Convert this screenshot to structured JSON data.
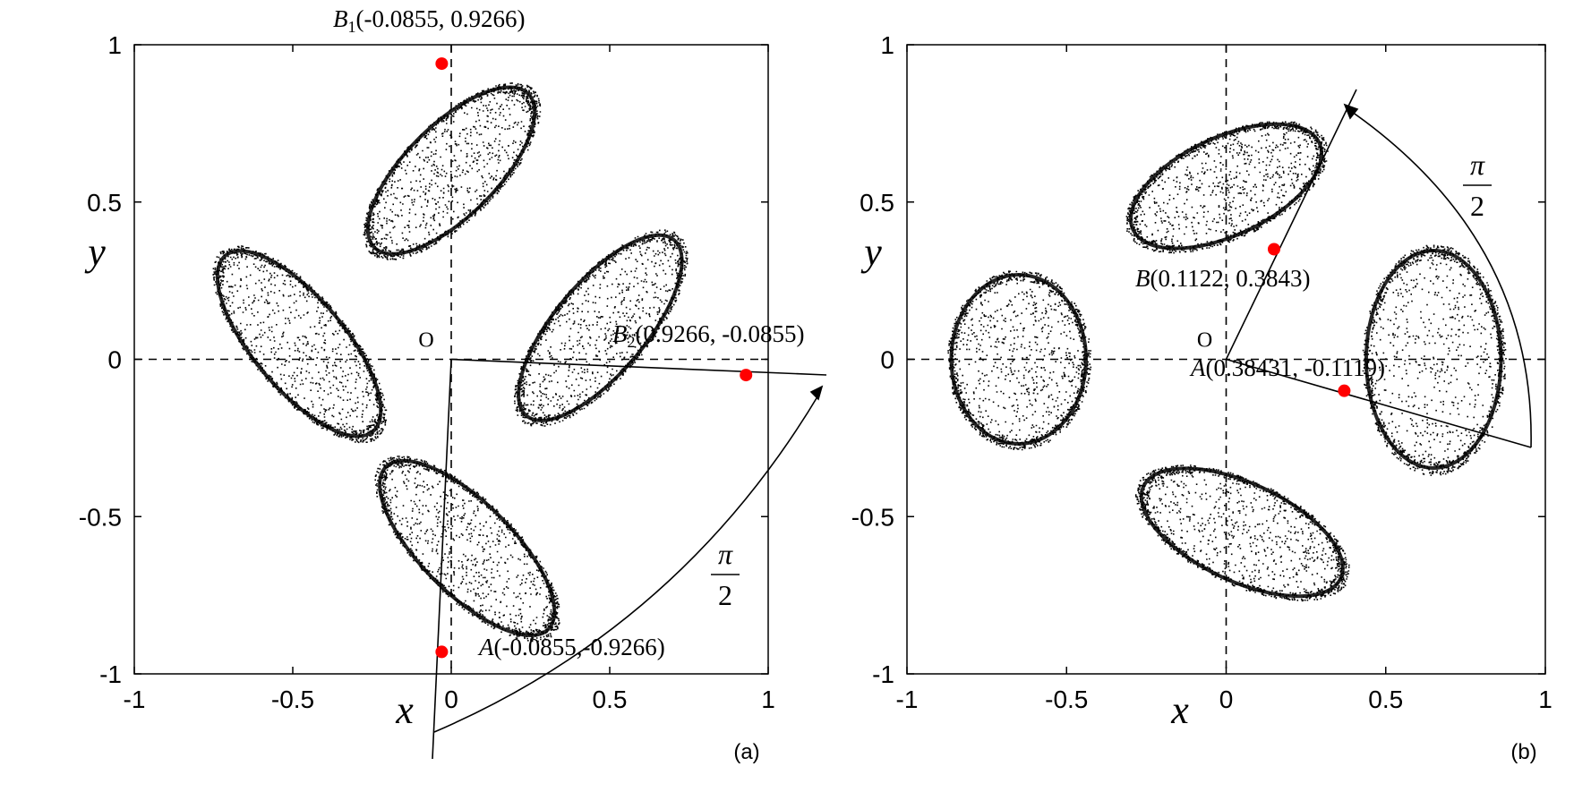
{
  "chart_data": [
    {
      "type": "scatter",
      "panel_label": "(a)",
      "xlabel": "x",
      "ylabel": "y",
      "xlim": [
        -1,
        1
      ],
      "ylim": [
        -1,
        1
      ],
      "xticks": [
        "-1",
        "-0.5",
        "0",
        "0.5",
        "1"
      ],
      "yticks": [
        "1",
        "0.5",
        "0",
        "-0.5",
        "-1"
      ],
      "grid": false,
      "dashed_axes_through_origin": true,
      "attractor": {
        "description_color": "#000000",
        "lobes": [
          {
            "cx": 0.0,
            "cy": 0.6,
            "rx": 0.15,
            "ry": 0.36,
            "rot_deg": 45
          },
          {
            "cx": -0.48,
            "cy": 0.05,
            "rx": 0.15,
            "ry": 0.38,
            "rot_deg": -40
          },
          {
            "cx": 0.47,
            "cy": 0.1,
            "rx": 0.15,
            "ry": 0.38,
            "rot_deg": 40
          },
          {
            "cx": 0.05,
            "cy": -0.6,
            "rx": 0.15,
            "ry": 0.38,
            "rot_deg": -45
          }
        ]
      },
      "points": [
        {
          "name": "B1",
          "label_sym": "B",
          "label_sub": "1",
          "label_coords": "(-0.0855, 0.9266)",
          "x": -0.03,
          "y": 0.94
        },
        {
          "name": "B2",
          "label_sym": "B",
          "label_sub": "2",
          "label_coords": "(0.9266, -0.0855)",
          "x": 0.93,
          "y": -0.05
        },
        {
          "name": "A",
          "label_sym": "A",
          "label_sub": "",
          "label_coords": "(-0.0855,-0.9266)",
          "x": -0.03,
          "y": -0.93
        }
      ],
      "origin_label": "O",
      "rotation_label": {
        "numerator": "π",
        "denominator": "2"
      },
      "point_color": "#ff0000"
    },
    {
      "type": "scatter",
      "panel_label": "(b)",
      "xlabel": "x",
      "ylabel": "y",
      "xlim": [
        -1,
        1
      ],
      "ylim": [
        -1,
        1
      ],
      "xticks": [
        "-1",
        "-0.5",
        "0",
        "0.5",
        "1"
      ],
      "yticks": [
        "1",
        "0.5",
        "0",
        "-0.5",
        "-1"
      ],
      "grid": false,
      "dashed_axes_through_origin": true,
      "attractor": {
        "description_color": "#000000",
        "lobes": [
          {
            "cx": 0.0,
            "cy": 0.55,
            "rx": 0.16,
            "ry": 0.34,
            "rot_deg": 65
          },
          {
            "cx": -0.65,
            "cy": 0.0,
            "rx": 0.22,
            "ry": 0.28,
            "rot_deg": 0
          },
          {
            "cx": 0.65,
            "cy": 0.0,
            "rx": 0.22,
            "ry": 0.36,
            "rot_deg": 0
          },
          {
            "cx": 0.05,
            "cy": -0.55,
            "rx": 0.16,
            "ry": 0.36,
            "rot_deg": -65
          }
        ]
      },
      "points": [
        {
          "name": "B",
          "label_sym": "B",
          "label_sub": "",
          "label_coords": "(0.1122, 0.3843)",
          "x": 0.15,
          "y": 0.35
        },
        {
          "name": "A",
          "label_sym": "A",
          "label_sub": "",
          "label_coords": "(0.38431, -0.1119)",
          "x": 0.37,
          "y": -0.1
        }
      ],
      "origin_label": "O",
      "rotation_label": {
        "numerator": "π",
        "denominator": "2"
      },
      "point_color": "#ff0000"
    }
  ]
}
